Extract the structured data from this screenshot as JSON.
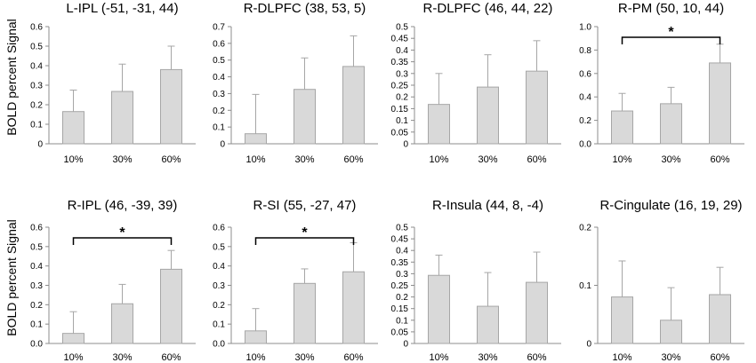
{
  "figure": {
    "y_axis_label": "BOLD percent Signal",
    "bar_color": "#d9d9d9",
    "bar_edge_color": "#a6a6a6",
    "axis_color": "#8c8c8c",
    "significance_marker": "*"
  },
  "chart_data": [
    {
      "type": "bar",
      "title": "L-IPL (-51, -31, 44)",
      "categories": [
        "10%",
        "30%",
        "60%"
      ],
      "values": [
        0.165,
        0.268,
        0.38
      ],
      "errors": [
        0.11,
        0.14,
        0.12
      ],
      "ylim": [
        0,
        0.6
      ],
      "yticks": [
        "0",
        "0.1",
        "0.2",
        "0.3",
        "0.4",
        "0.5",
        "0.6"
      ],
      "significance": null
    },
    {
      "type": "bar",
      "title": "R-DLPFC (38, 53, 5)",
      "categories": [
        "10%",
        "30%",
        "60%"
      ],
      "values": [
        0.06,
        0.325,
        0.462
      ],
      "errors": [
        0.235,
        0.188,
        0.183
      ],
      "ylim": [
        0,
        0.7
      ],
      "yticks": [
        "0",
        "0.1",
        "0.2",
        "0.3",
        "0.4",
        "0.5",
        "0.6",
        "0.7"
      ],
      "significance": null
    },
    {
      "type": "bar",
      "title": "R-DLPFC (46, 44, 22)",
      "categories": [
        "10%",
        "30%",
        "60%"
      ],
      "values": [
        0.168,
        0.242,
        0.31
      ],
      "errors": [
        0.132,
        0.138,
        0.13
      ],
      "ylim": [
        0,
        0.5
      ],
      "yticks": [
        "0",
        "0.05",
        "0.1",
        "0.15",
        "0.2",
        "0.25",
        "0.3",
        "0.35",
        "0.4",
        "0.45",
        "0.5"
      ],
      "significance": null
    },
    {
      "type": "bar",
      "title": "R-PM (50, 10, 44)",
      "categories": [
        "10%",
        "30%",
        "60%"
      ],
      "values": [
        0.28,
        0.342,
        0.69
      ],
      "errors": [
        0.15,
        0.14,
        0.16
      ],
      "ylim": [
        0,
        1.0
      ],
      "yticks": [
        "0.0",
        "0.2",
        "0.4",
        "0.6",
        "0.8",
        "1.0"
      ],
      "significance": {
        "from": 0,
        "to": 2,
        "label": "*"
      }
    },
    {
      "type": "bar",
      "title": "R-IPL (46, -39, 39)",
      "categories": [
        "10%",
        "30%",
        "60%"
      ],
      "values": [
        0.052,
        0.205,
        0.383
      ],
      "errors": [
        0.112,
        0.1,
        0.097
      ],
      "ylim": [
        0,
        0.6
      ],
      "yticks": [
        "0.0",
        "0.1",
        "0.2",
        "0.3",
        "0.4",
        "0.5",
        "0.6"
      ],
      "significance": {
        "from": 0,
        "to": 2,
        "label": "*"
      }
    },
    {
      "type": "bar",
      "title": "R-SI (55, -27, 47)",
      "categories": [
        "10%",
        "30%",
        "60%"
      ],
      "values": [
        0.065,
        0.31,
        0.37
      ],
      "errors": [
        0.115,
        0.075,
        0.15
      ],
      "ylim": [
        0,
        0.6
      ],
      "yticks": [
        "0.0",
        "0.1",
        "0.2",
        "0.3",
        "0.4",
        "0.5",
        "0.6"
      ],
      "significance": {
        "from": 0,
        "to": 2,
        "label": "*"
      }
    },
    {
      "type": "bar",
      "title": "R-Insula (44, 8, -4)",
      "categories": [
        "10%",
        "30%",
        "60%"
      ],
      "values": [
        0.293,
        0.16,
        0.263
      ],
      "errors": [
        0.087,
        0.145,
        0.13
      ],
      "ylim": [
        0,
        0.5
      ],
      "yticks": [
        "0",
        "0.05",
        "0.1",
        "0.15",
        "0.2",
        "0.25",
        "0.3",
        "0.35",
        "0.4",
        "0.45",
        "0.5"
      ],
      "significance": null
    },
    {
      "type": "bar",
      "title": "R-Cingulate (16, 19, 29)",
      "categories": [
        "10%",
        "30%",
        "60%"
      ],
      "values": [
        0.08,
        0.04,
        0.084
      ],
      "errors": [
        0.062,
        0.056,
        0.047
      ],
      "ylim": [
        0,
        0.2
      ],
      "yticks": [
        "0",
        "0.1",
        "0.2"
      ],
      "significance": null
    }
  ]
}
